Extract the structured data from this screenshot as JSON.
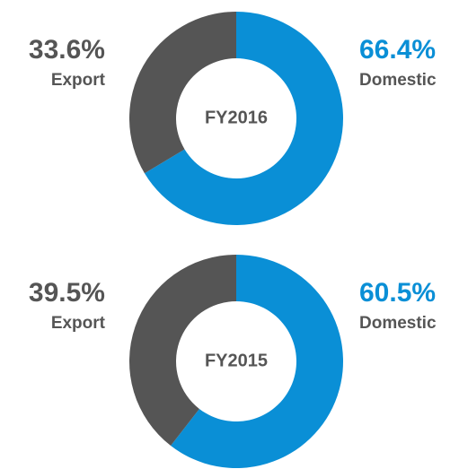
{
  "chart_data": [
    {
      "type": "donut",
      "title": "FY2016",
      "categories": [
        "Domestic",
        "Export"
      ],
      "values": [
        66.4,
        33.6
      ],
      "value_labels": [
        "66.4%",
        "33.6%"
      ],
      "colors": [
        "#0a8fd6",
        "#555555"
      ]
    },
    {
      "type": "donut",
      "title": "FY2015",
      "categories": [
        "Domestic",
        "Export"
      ],
      "values": [
        60.5,
        39.5
      ],
      "value_labels": [
        "60.5%",
        "39.5%"
      ],
      "colors": [
        "#0a8fd6",
        "#555555"
      ]
    }
  ]
}
